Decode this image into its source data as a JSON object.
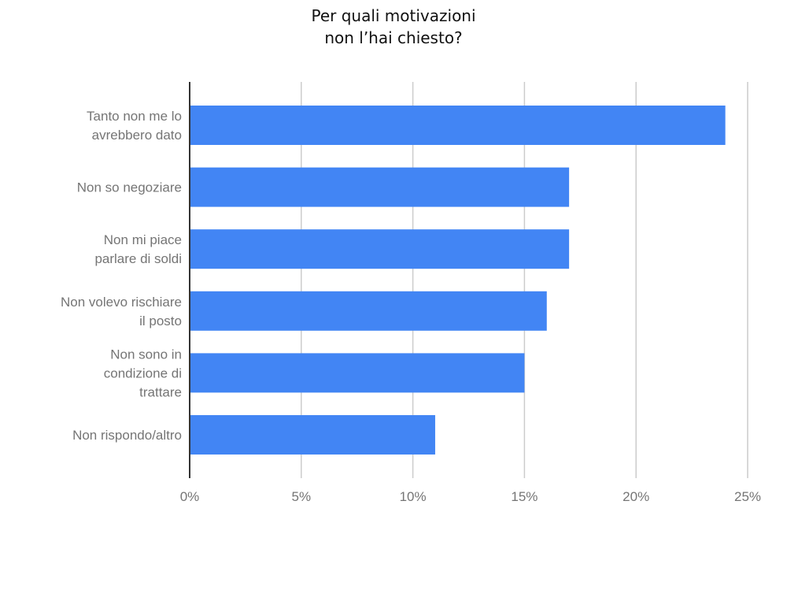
{
  "chart_data": {
    "type": "bar",
    "orientation": "horizontal",
    "title_lines": [
      "Per quali motivazioni",
      "non l’hai chiesto?"
    ],
    "categories": [
      [
        "Tanto non me lo",
        "avrebbero dato"
      ],
      [
        "Non so negoziare"
      ],
      [
        "Non mi piace",
        "parlare di soldi"
      ],
      [
        "Non volevo rischiare",
        "il posto"
      ],
      [
        "Non sono in",
        "condizione di",
        "trattare"
      ],
      [
        "Non rispondo/altro"
      ]
    ],
    "values": [
      24,
      17,
      17,
      16,
      15,
      11
    ],
    "xlim": [
      0,
      25
    ],
    "xticks": [
      0,
      5,
      10,
      15,
      20,
      25
    ],
    "xtick_labels": [
      "0%",
      "5%",
      "10%",
      "15%",
      "20%",
      "25%"
    ],
    "unit": "%",
    "grid": true,
    "legend": "none",
    "colors": {
      "bar": "#4285f4",
      "grid": "#cccccc",
      "axis": "#333333",
      "label": "#757575",
      "title": "#111111"
    }
  }
}
